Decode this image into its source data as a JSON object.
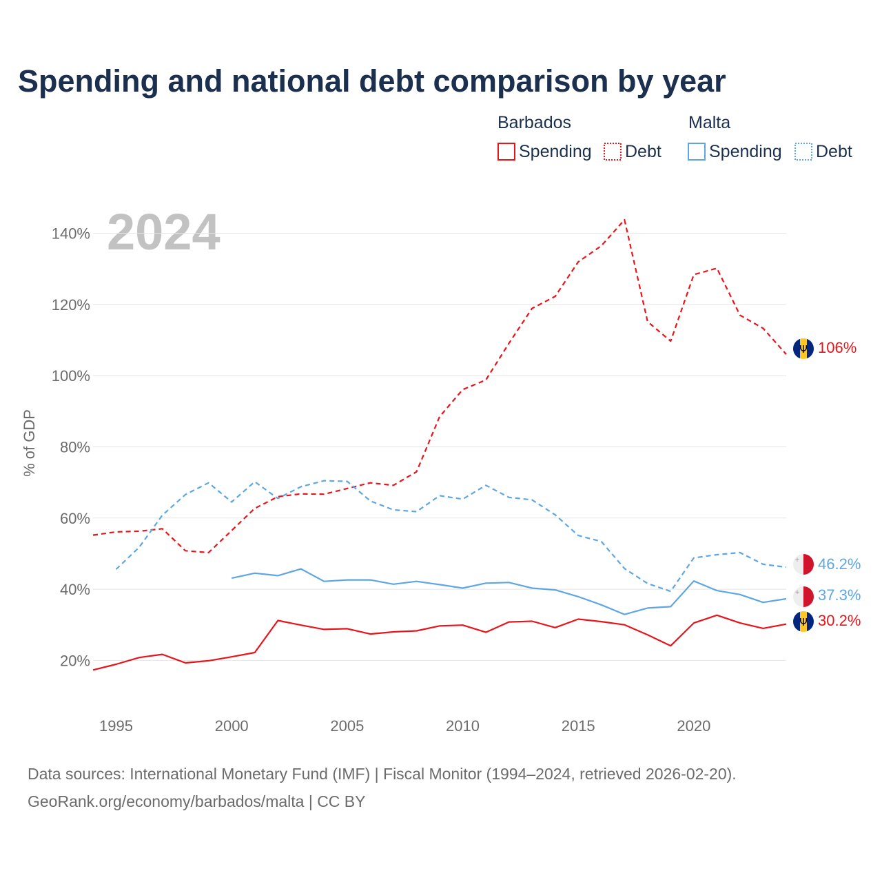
{
  "title": "Spending and national debt comparison by year",
  "year_label": "2024",
  "legend": {
    "groups": [
      {
        "name": "Barbados",
        "color": "#e8141a",
        "items": [
          {
            "label": "Spending",
            "style": "solid"
          },
          {
            "label": "Debt",
            "style": "dotted"
          }
        ]
      },
      {
        "name": "Malta",
        "color": "#5ea6e2",
        "items": [
          {
            "label": "Spending",
            "style": "solid"
          },
          {
            "label": "Debt",
            "style": "dotted"
          }
        ]
      }
    ]
  },
  "chart_data": {
    "type": "line",
    "ylabel": "% of GDP",
    "xlabel": "",
    "xlim": [
      1994,
      2024
    ],
    "ylim": [
      10,
      150
    ],
    "x_ticks": [
      1995,
      2000,
      2005,
      2010,
      2015,
      2020
    ],
    "y_ticks": [
      {
        "value": 20,
        "label": "20%"
      },
      {
        "value": 40,
        "label": "40%"
      },
      {
        "value": 60,
        "label": "60%"
      },
      {
        "value": 80,
        "label": "80%"
      },
      {
        "value": 100,
        "label": "100%"
      },
      {
        "value": 120,
        "label": "120%"
      },
      {
        "value": 140,
        "label": "140%"
      }
    ],
    "series": [
      {
        "name": "Barbados Debt",
        "country": "Barbados",
        "metric": "Debt",
        "dash": "dashed",
        "color": "#e8141a",
        "start_year": 1994,
        "values": [
          55.2,
          56.1,
          56.3,
          57.0,
          50.8,
          50.3,
          56.5,
          62.7,
          66.0,
          66.8,
          66.7,
          68.3,
          69.9,
          69.2,
          73.0,
          88.5,
          96.1,
          98.8,
          109.1,
          118.9,
          122.3,
          132.0,
          136.5,
          143.8,
          115.2,
          109.7,
          128.4,
          130.2,
          117.0,
          113.3,
          106.0
        ],
        "end_label": "106%",
        "flag": "barbados"
      },
      {
        "name": "Barbados Spending",
        "country": "Barbados",
        "metric": "Spending",
        "dash": "solid",
        "color": "#e8141a",
        "start_year": 1994,
        "values": [
          17.3,
          18.9,
          20.8,
          21.7,
          19.3,
          19.9,
          21.0,
          22.2,
          31.2,
          29.9,
          28.7,
          28.9,
          27.4,
          28.0,
          28.3,
          29.7,
          29.9,
          27.9,
          30.8,
          31.0,
          29.2,
          31.6,
          30.9,
          30.0,
          27.2,
          24.1,
          30.5,
          32.7,
          30.5,
          29.0,
          30.2
        ],
        "end_label": "30.2%",
        "flag": "barbados"
      },
      {
        "name": "Malta Debt",
        "country": "Malta",
        "metric": "Debt",
        "dash": "dashed",
        "color": "#5ea6e2",
        "start_year": 1995,
        "values": [
          45.6,
          51.8,
          60.8,
          66.6,
          69.9,
          64.5,
          70.2,
          65.5,
          68.8,
          70.5,
          70.3,
          64.8,
          62.3,
          61.8,
          66.3,
          65.3,
          69.2,
          65.8,
          65.1,
          60.9,
          55.1,
          53.4,
          45.8,
          41.6,
          39.4,
          48.8,
          49.7,
          50.3,
          47.0,
          46.2
        ],
        "end_label": "46.2%",
        "flag": "malta"
      },
      {
        "name": "Malta Spending",
        "country": "Malta",
        "metric": "Spending",
        "dash": "solid",
        "color": "#5ea6e2",
        "start_year": 2000,
        "values": [
          43.1,
          44.5,
          43.8,
          45.7,
          42.2,
          42.6,
          42.6,
          41.4,
          42.2,
          41.3,
          40.3,
          41.7,
          41.9,
          40.3,
          39.8,
          37.9,
          35.6,
          32.9,
          34.7,
          35.1,
          42.3,
          39.6,
          38.5,
          36.3,
          37.3
        ],
        "end_label": "37.3%",
        "flag": "malta"
      }
    ]
  },
  "sources": {
    "line1": "Data sources: International Monetary Fund (IMF) | Fiscal Monitor (1994–2024, retrieved 2026-02-20).",
    "line2": "GeoRank.org/economy/barbados/malta | CC BY"
  }
}
